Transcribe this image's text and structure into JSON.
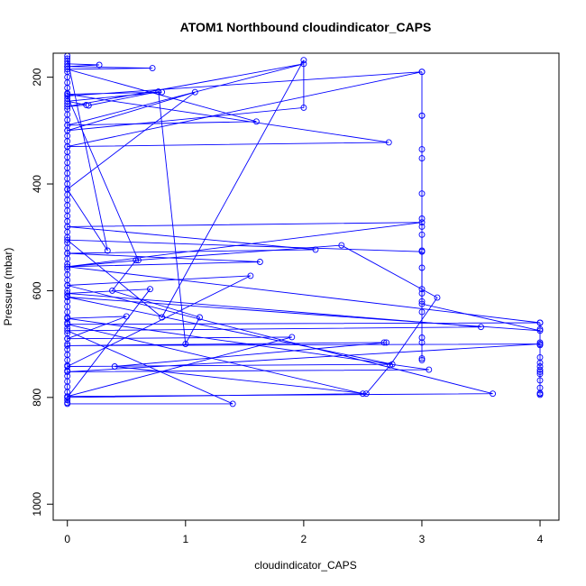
{
  "chart_data": {
    "type": "scatter",
    "title": "ATOM1 Northbound cloudindicator_CAPS",
    "xlabel": "cloudindicator_CAPS",
    "ylabel": "Pressure (mbar)",
    "xlim": [
      -0.12,
      4.16
    ],
    "ylim": [
      1030,
      155
    ],
    "y_inverted": true,
    "x_ticks": [
      0,
      1,
      2,
      3,
      4
    ],
    "y_ticks": [
      200,
      400,
      600,
      800,
      1000
    ],
    "series_color": "#0000ff",
    "series": [
      {
        "x": [
          0,
          0.27,
          0,
          0.72,
          0,
          1.6,
          0,
          2.0,
          0,
          0.16,
          0,
          0.8,
          0,
          2.72,
          0,
          3.0,
          0,
          0.6,
          0,
          3.0,
          0,
          2.1,
          0,
          1.63,
          0,
          4.0,
          0,
          2.5,
          0,
          0.7,
          0,
          3.5,
          0,
          1.4,
          0
        ],
        "y": [
          175,
          177,
          180,
          183,
          185,
          283,
          290,
          175,
          255,
          252,
          245,
          228,
          232,
          322,
          330,
          190,
          235,
          543,
          555,
          472,
          480,
          523,
          530,
          546,
          555,
          660,
          663,
          793,
          800,
          597,
          605,
          668,
          675,
          812,
          812
        ]
      },
      {
        "x": [
          0,
          0.34,
          0,
          1.08,
          0,
          2.0,
          2.0,
          0.8,
          0,
          3.0,
          3.0,
          4.0,
          0,
          2.75,
          0,
          1.55,
          0,
          3.6,
          0,
          1.9,
          0,
          0.5,
          0,
          3.06,
          0,
          4.0,
          0,
          2.68
        ],
        "y": [
          165,
          525,
          410,
          228,
          300,
          257,
          168,
          650,
          505,
          527,
          625,
          675,
          612,
          738,
          742,
          572,
          590,
          793,
          798,
          687,
          690,
          648,
          652,
          748,
          752,
          700,
          703,
          697
        ]
      },
      {
        "x": [
          3.0,
          3.0,
          3.0,
          3.0,
          3.0,
          3.0,
          3.0,
          3.0,
          3.0,
          3.0,
          3.0,
          3.0,
          3.0,
          3.0,
          3.0,
          3.0,
          3.0,
          3.0,
          3.0
        ],
        "y": [
          190,
          272,
          272,
          335,
          352,
          418,
          465,
          480,
          495,
          525,
          557,
          597,
          605,
          620,
          640,
          688,
          697,
          727,
          730
        ]
      },
      {
        "x": [
          4.0,
          4.0,
          4.0,
          4.0,
          4.0,
          4.0,
          4.0,
          4.0,
          4.0,
          4.0,
          4.0,
          4.0,
          4.0,
          4.0,
          4.0
        ],
        "y": [
          660,
          672,
          697,
          702,
          725,
          735,
          742,
          748,
          752,
          756,
          768,
          782,
          792,
          793,
          795
        ]
      },
      {
        "x": [
          0.18,
          0.77,
          1.0,
          1.12,
          0.38,
          0.58,
          2.32,
          3.13,
          2.73,
          2.53,
          0.4,
          2.7
        ],
        "y": [
          253,
          227,
          700,
          650,
          600,
          543,
          515,
          613,
          740,
          793,
          742,
          697
        ]
      },
      {
        "x": [
          0,
          0,
          0,
          0,
          0,
          0,
          0,
          0,
          0,
          0,
          0,
          0,
          0,
          0,
          0,
          0,
          0,
          0,
          0,
          0,
          0,
          0,
          0,
          0,
          0,
          0,
          0,
          0,
          0,
          0,
          0,
          0,
          0,
          0,
          0,
          0,
          0,
          0,
          0,
          0,
          0,
          0,
          0,
          0,
          0,
          0,
          0,
          0,
          0,
          0,
          0,
          0,
          0,
          0,
          0,
          0,
          0,
          0,
          0,
          0,
          0,
          0,
          0,
          0,
          0,
          0,
          0
        ],
        "y": [
          160,
          170,
          180,
          190,
          200,
          210,
          220,
          230,
          240,
          250,
          260,
          270,
          280,
          290,
          300,
          310,
          320,
          330,
          340,
          350,
          360,
          370,
          380,
          390,
          400,
          410,
          420,
          430,
          440,
          450,
          460,
          470,
          480,
          490,
          500,
          510,
          520,
          530,
          540,
          550,
          560,
          570,
          580,
          590,
          600,
          610,
          620,
          630,
          640,
          650,
          660,
          670,
          680,
          690,
          700,
          710,
          720,
          730,
          740,
          750,
          760,
          770,
          780,
          790,
          800,
          805,
          810
        ]
      }
    ],
    "grid": false,
    "legend": "none"
  }
}
